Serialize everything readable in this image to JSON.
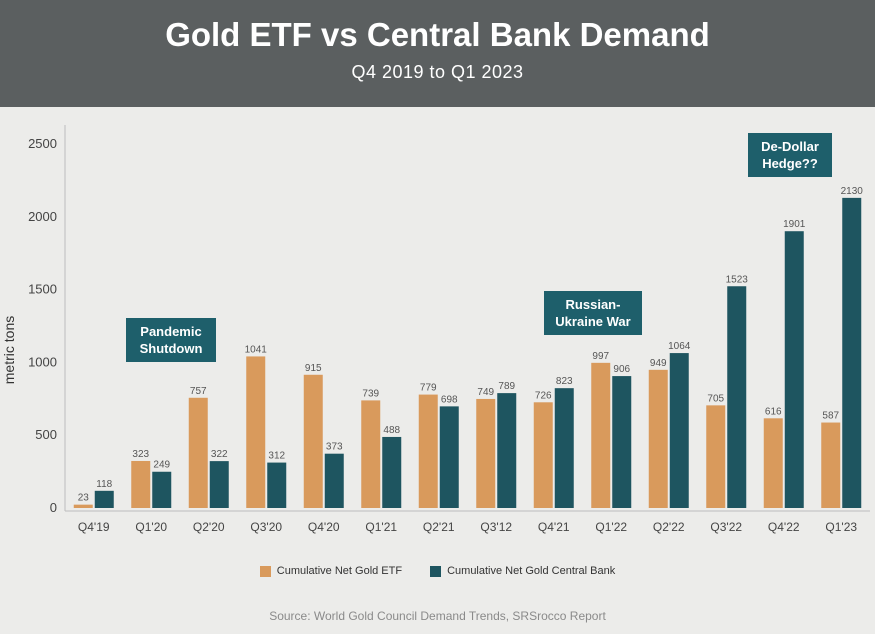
{
  "header": {
    "title": "Gold ETF vs Central Bank Demand",
    "subtitle": "Q4 2019 to Q1 2023"
  },
  "colors": {
    "etf": "#d99a5c",
    "central_bank": "#1e5560",
    "header_bg": "#5b5f60",
    "annotation_bg": "#1e5f6b"
  },
  "annotations": {
    "pandemic": "Pandemic\nShutdown",
    "russia": "Russian-\nUkraine War",
    "dedollar": "De-Dollar\nHedge??"
  },
  "legend": {
    "etf": "Cumulative Net Gold ETF",
    "central_bank": "Cumulative Net Gold Central Bank"
  },
  "source": "Source: World Gold Council Demand Trends, SRSrocco Report",
  "chart_data": {
    "type": "bar",
    "title": "Gold ETF vs Central Bank Demand",
    "subtitle": "Q4 2019 to Q1 2023",
    "xlabel": "",
    "ylabel": "metric tons",
    "ylim": [
      0,
      2500
    ],
    "yticks": [
      0,
      500,
      1000,
      1500,
      2000,
      2500
    ],
    "categories": [
      "Q4'19",
      "Q1'20",
      "Q2'20",
      "Q3'20",
      "Q4'20",
      "Q1'21",
      "Q2'21",
      "Q3'12",
      "Q4'21",
      "Q1'22",
      "Q2'22",
      "Q3'22",
      "Q4'22",
      "Q1'23"
    ],
    "series": [
      {
        "name": "Cumulative Net Gold ETF",
        "values": [
          23,
          323,
          757,
          1041,
          915,
          739,
          779,
          749,
          726,
          997,
          949,
          705,
          616,
          587
        ]
      },
      {
        "name": "Cumulative Net Gold Central Bank",
        "values": [
          118,
          249,
          322,
          312,
          373,
          488,
          698,
          789,
          823,
          906,
          1064,
          1523,
          1901,
          2130
        ]
      }
    ],
    "grid": false,
    "legend_position": "bottom"
  }
}
